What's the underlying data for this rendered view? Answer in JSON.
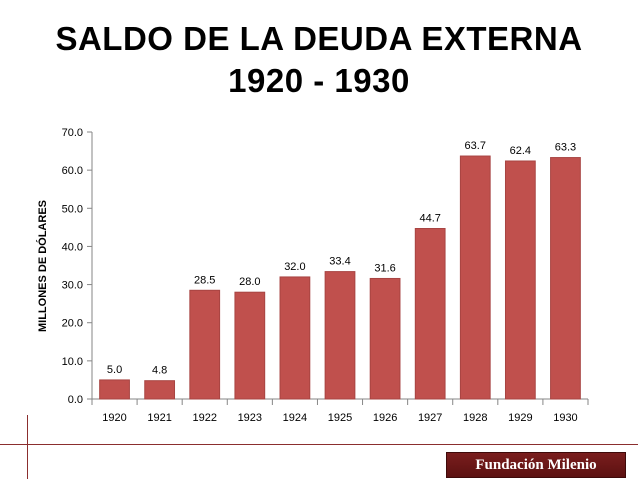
{
  "title": {
    "line1": "SALDO DE LA DEUDA EXTERNA",
    "line2": "1920 - 1930"
  },
  "brand": {
    "name": "Fundación Milenio"
  },
  "colors": {
    "bar": "#c0504d",
    "bar_edge": "#a84442",
    "axis": "#868686",
    "rule": "#8b2e2e"
  },
  "chart_data": {
    "type": "bar",
    "categories": [
      "1920",
      "1921",
      "1922",
      "1923",
      "1924",
      "1925",
      "1926",
      "1927",
      "1928",
      "1929",
      "1930"
    ],
    "values": [
      5.0,
      4.8,
      28.5,
      28.0,
      32.0,
      33.4,
      31.6,
      44.7,
      63.7,
      62.4,
      63.3
    ],
    "data_labels": [
      "5.0",
      "4.8",
      "28.5",
      "28.0",
      "32.0",
      "33.4",
      "31.6",
      "44.7",
      "63.7",
      "62.4",
      "63.3"
    ],
    "ylabel": "MILLONES DE DÓLARES",
    "xlabel": "",
    "ylim": [
      0,
      70
    ],
    "yticks": [
      0,
      10,
      20,
      30,
      40,
      50,
      60,
      70
    ],
    "ytick_labels": [
      "0.0",
      "10.0",
      "20.0",
      "30.0",
      "40.0",
      "50.0",
      "60.0",
      "70.0"
    ],
    "grid": false,
    "legend": "none"
  }
}
